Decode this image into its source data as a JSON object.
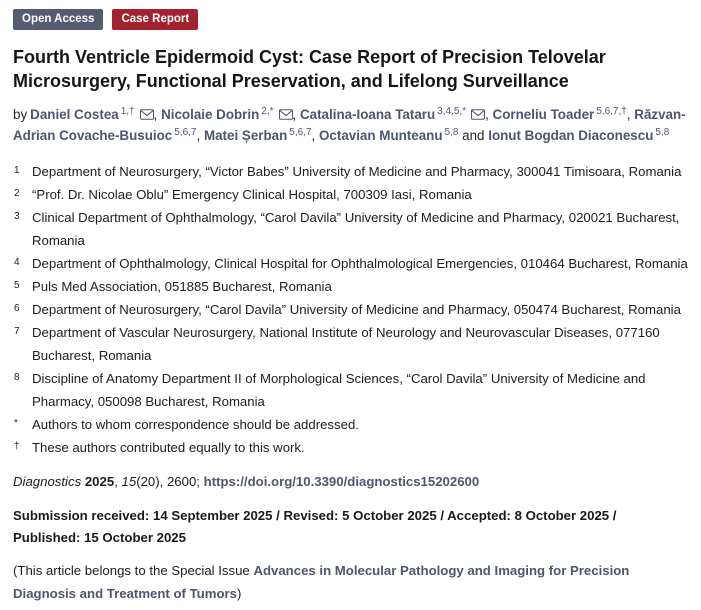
{
  "badges": {
    "open_access": "Open Access",
    "article_type": "Case Report"
  },
  "title": "Fourth Ventricle Epidermoid Cyst: Case Report of Precision Telovelar Microsurgery, Functional Preservation, and Lifelong Surveillance",
  "authors": {
    "prefix": "by",
    "separator": ", ",
    "last_separator": " and ",
    "email_icon": "envelope-icon",
    "list": [
      {
        "name": "Daniel Costea",
        "sup": "1,†",
        "email": true
      },
      {
        "name": "Nicolaie Dobrin",
        "sup": "2,*",
        "email": true
      },
      {
        "name": "Catalina-Ioana Tataru",
        "sup": "3,4,5,*",
        "email": true
      },
      {
        "name": "Corneliu Toader",
        "sup": "5,6,7,†",
        "email": false
      },
      {
        "name": "Răzvan-Adrian Covache-Busuioc",
        "sup": "5,6,7",
        "email": false
      },
      {
        "name": "Matei Șerban",
        "sup": "5,6,7",
        "email": false
      },
      {
        "name": "Octavian Munteanu",
        "sup": "5,8",
        "email": false
      },
      {
        "name": "Ionut Bogdan Diaconescu",
        "sup": "5,8",
        "email": false
      }
    ]
  },
  "affiliations": [
    {
      "num": "1",
      "text": "Department of Neurosurgery, “Victor Babes” University of Medicine and Pharmacy, 300041 Timisoara, Romania"
    },
    {
      "num": "2",
      "text": "“Prof. Dr. Nicolae Oblu” Emergency Clinical Hospital, 700309 Iasi, Romania"
    },
    {
      "num": "3",
      "text": "Clinical Department of Ophthalmology, “Carol Davila” University of Medicine and Pharmacy, 020021 Bucharest, Romania"
    },
    {
      "num": "4",
      "text": "Department of Ophthalmology, Clinical Hospital for Ophthalmological Emergencies, 010464 Bucharest, Romania"
    },
    {
      "num": "5",
      "text": "Puls Med Association, 051885 Bucharest, Romania"
    },
    {
      "num": "6",
      "text": "Department of Neurosurgery, “Carol Davila” University of Medicine and Pharmacy, 050474 Bucharest, Romania"
    },
    {
      "num": "7",
      "text": "Department of Vascular Neurosurgery, National Institute of Neurology and Neurovascular Diseases, 077160 Bucharest, Romania"
    },
    {
      "num": "8",
      "text": "Discipline of Anatomy Department II of Morphological Sciences, “Carol Davila” University of Medicine and Pharmacy, 050098 Bucharest, Romania"
    }
  ],
  "footnotes": [
    {
      "marker": "*",
      "text": "Authors to whom correspondence should be addressed."
    },
    {
      "marker": "†",
      "text": "These authors contributed equally to this work."
    }
  ],
  "citation": {
    "journal": "Diagnostics",
    "sep0": " ",
    "year": "2025",
    "sep1": ", ",
    "volume": "15",
    "issue_pages": "(20), 2600; ",
    "doi": "https://doi.org/10.3390/diagnostics15202600"
  },
  "dates": "Submission received: 14 September 2025 / Revised: 5 October 2025 / Accepted: 8 October 2025 / Published: 15 October 2025",
  "special_issue": {
    "prefix": "(This article belongs to the Special Issue ",
    "link": "Advances in Molecular Pathology and Imaging for Precision Diagnosis and Treatment of Tumors",
    "suffix": ")"
  },
  "colors": {
    "open_access_bg": "#545c72",
    "case_report_bg": "#a2232f",
    "link": "#4e566f"
  }
}
